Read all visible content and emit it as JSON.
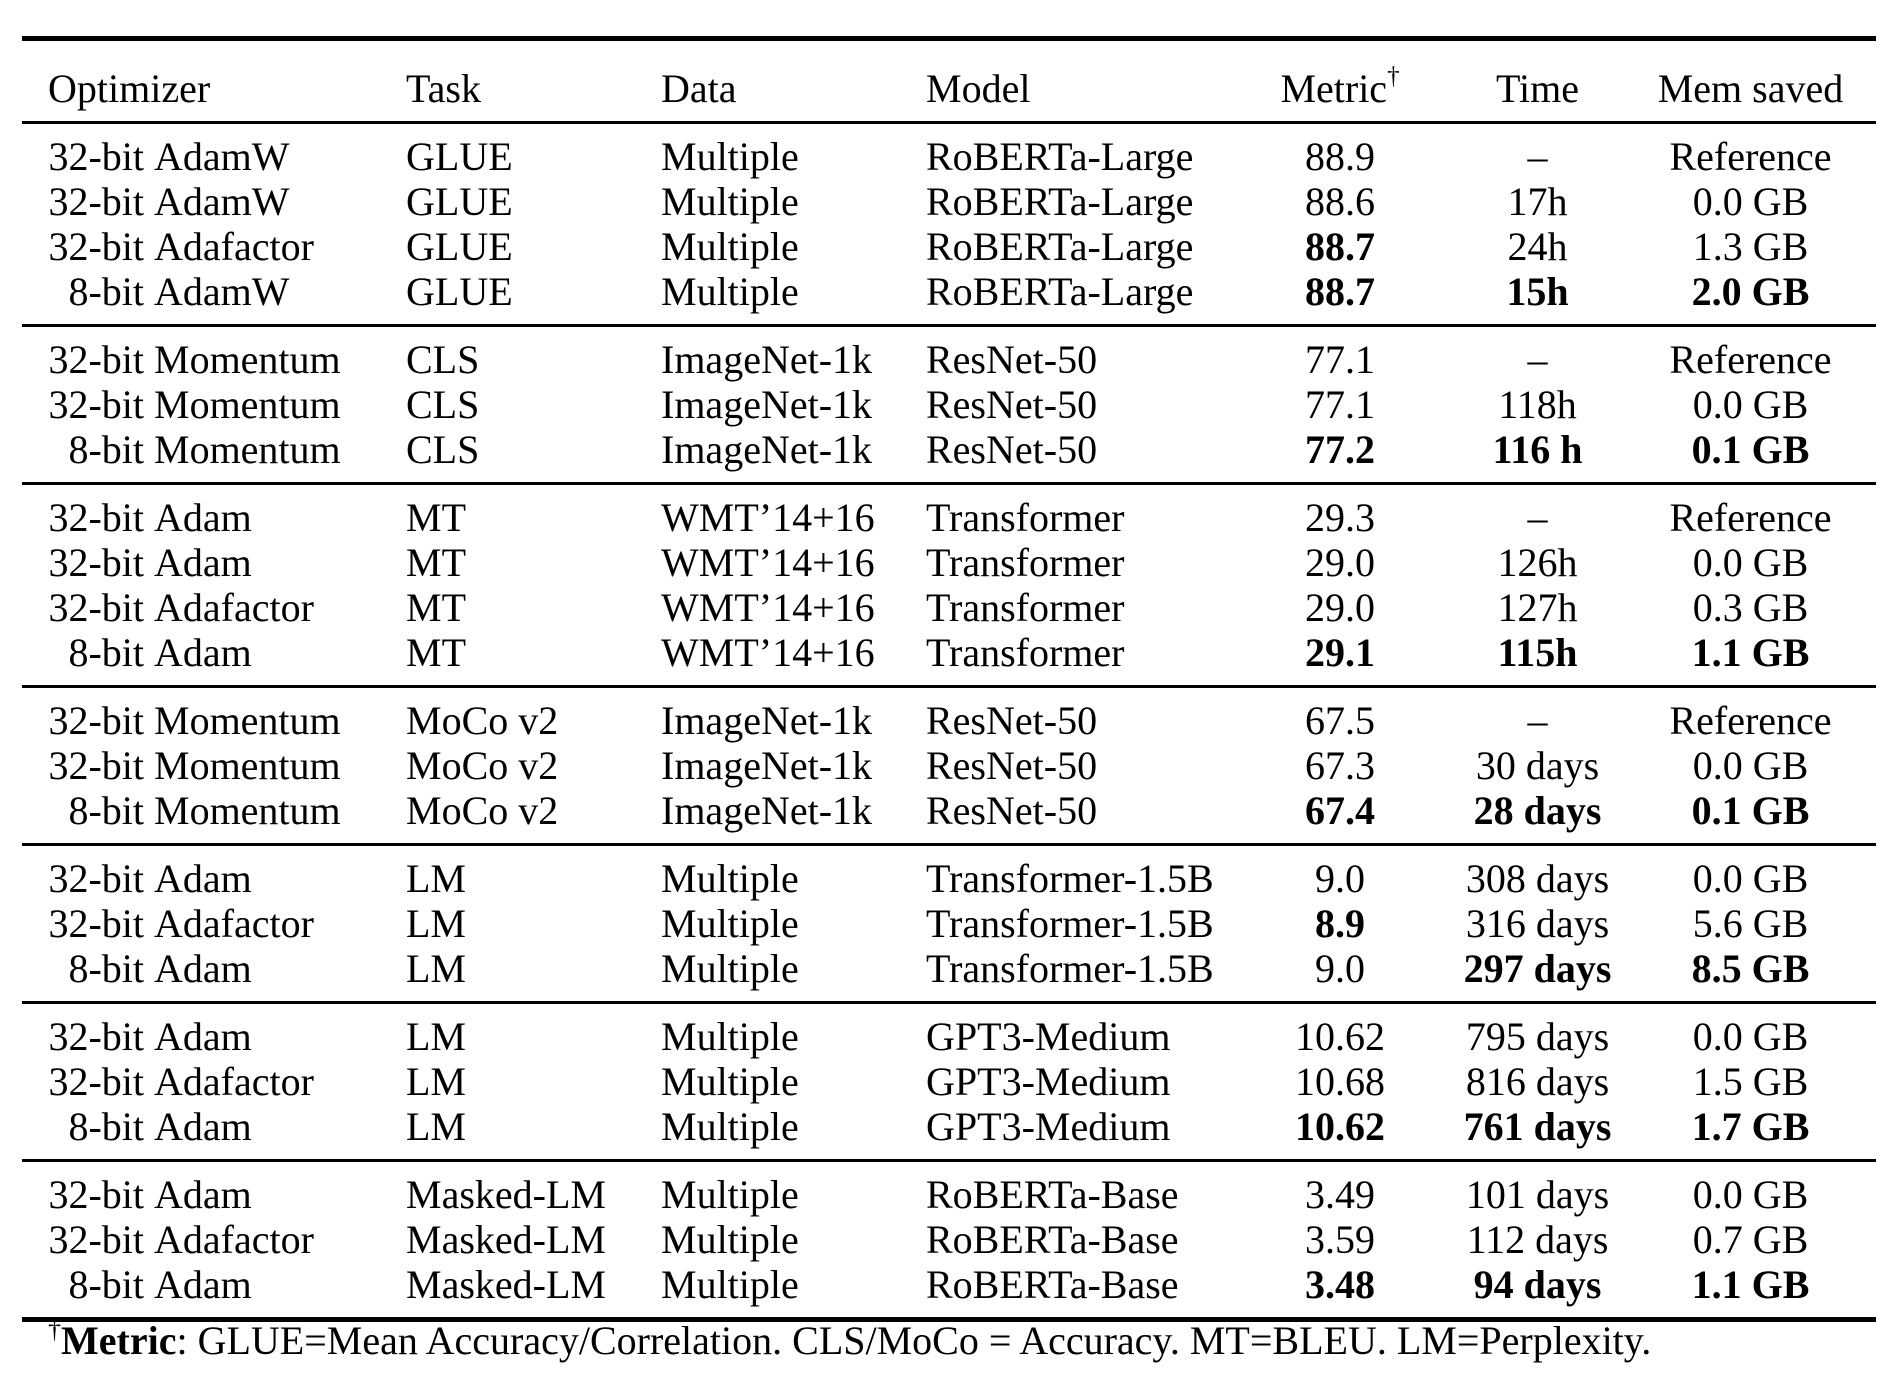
{
  "table": {
    "headers": [
      {
        "label": "Optimizer"
      },
      {
        "label": "Task"
      },
      {
        "label": "Data"
      },
      {
        "label": "Model"
      },
      {
        "label": "Metric",
        "sup": "†"
      },
      {
        "label": "Time"
      },
      {
        "label": "Mem saved"
      }
    ],
    "blocks": [
      {
        "rows": [
          {
            "optimizer": {
              "prefix": "32-bit",
              "name": "AdamW"
            },
            "task": "GLUE",
            "data": "Multiple",
            "model": "RoBERTa-Large",
            "metric": {
              "text": "88.9",
              "bold": false
            },
            "time": {
              "text": "–",
              "bold": false
            },
            "mem": {
              "text": "Reference",
              "bold": false
            }
          },
          {
            "optimizer": {
              "prefix": "32-bit",
              "name": "AdamW"
            },
            "task": "GLUE",
            "data": "Multiple",
            "model": "RoBERTa-Large",
            "metric": {
              "text": "88.6",
              "bold": false
            },
            "time": {
              "text": "17h",
              "bold": false
            },
            "mem": {
              "text": "0.0 GB",
              "bold": false
            }
          },
          {
            "optimizer": {
              "prefix": "32-bit",
              "name": "Adafactor"
            },
            "task": "GLUE",
            "data": "Multiple",
            "model": "RoBERTa-Large",
            "metric": {
              "text": "88.7",
              "bold": true
            },
            "time": {
              "text": "24h",
              "bold": false
            },
            "mem": {
              "text": "1.3 GB",
              "bold": false
            }
          },
          {
            "optimizer": {
              "prefix": "8-bit",
              "name": "AdamW"
            },
            "task": "GLUE",
            "data": "Multiple",
            "model": "RoBERTa-Large",
            "metric": {
              "text": "88.7",
              "bold": true
            },
            "time": {
              "text": "15h",
              "bold": true
            },
            "mem": {
              "text": "2.0 GB",
              "bold": true
            }
          }
        ]
      },
      {
        "rows": [
          {
            "optimizer": {
              "prefix": "32-bit",
              "name": "Momentum"
            },
            "task": "CLS",
            "data": "ImageNet-1k",
            "model": "ResNet-50",
            "metric": {
              "text": "77.1",
              "bold": false
            },
            "time": {
              "text": "–",
              "bold": false
            },
            "mem": {
              "text": "Reference",
              "bold": false
            }
          },
          {
            "optimizer": {
              "prefix": "32-bit",
              "name": "Momentum"
            },
            "task": "CLS",
            "data": "ImageNet-1k",
            "model": "ResNet-50",
            "metric": {
              "text": "77.1",
              "bold": false
            },
            "time": {
              "text": "118h",
              "bold": false
            },
            "mem": {
              "text": "0.0 GB",
              "bold": false
            }
          },
          {
            "optimizer": {
              "prefix": "8-bit",
              "name": "Momentum"
            },
            "task": "CLS",
            "data": "ImageNet-1k",
            "model": "ResNet-50",
            "metric": {
              "text": "77.2",
              "bold": true
            },
            "time": {
              "text": "116 h",
              "bold": true
            },
            "mem": {
              "text": "0.1 GB",
              "bold": true
            }
          }
        ]
      },
      {
        "rows": [
          {
            "optimizer": {
              "prefix": "32-bit",
              "name": "Adam"
            },
            "task": "MT",
            "data": "WMT’14+16",
            "model": "Transformer",
            "metric": {
              "text": "29.3",
              "bold": false
            },
            "time": {
              "text": "–",
              "bold": false
            },
            "mem": {
              "text": "Reference",
              "bold": false
            }
          },
          {
            "optimizer": {
              "prefix": "32-bit",
              "name": "Adam"
            },
            "task": "MT",
            "data": "WMT’14+16",
            "model": "Transformer",
            "metric": {
              "text": "29.0",
              "bold": false
            },
            "time": {
              "text": "126h",
              "bold": false
            },
            "mem": {
              "text": "0.0 GB",
              "bold": false
            }
          },
          {
            "optimizer": {
              "prefix": "32-bit",
              "name": "Adafactor"
            },
            "task": "MT",
            "data": "WMT’14+16",
            "model": "Transformer",
            "metric": {
              "text": "29.0",
              "bold": false
            },
            "time": {
              "text": "127h",
              "bold": false
            },
            "mem": {
              "text": "0.3 GB",
              "bold": false
            }
          },
          {
            "optimizer": {
              "prefix": "8-bit",
              "name": "Adam"
            },
            "task": "MT",
            "data": "WMT’14+16",
            "model": "Transformer",
            "metric": {
              "text": "29.1",
              "bold": true
            },
            "time": {
              "text": "115h",
              "bold": true
            },
            "mem": {
              "text": "1.1 GB",
              "bold": true
            }
          }
        ]
      },
      {
        "rows": [
          {
            "optimizer": {
              "prefix": "32-bit",
              "name": "Momentum"
            },
            "task": "MoCo v2",
            "data": "ImageNet-1k",
            "model": "ResNet-50",
            "metric": {
              "text": "67.5",
              "bold": false
            },
            "time": {
              "text": "–",
              "bold": false
            },
            "mem": {
              "text": "Reference",
              "bold": false
            }
          },
          {
            "optimizer": {
              "prefix": "32-bit",
              "name": "Momentum"
            },
            "task": "MoCo v2",
            "data": "ImageNet-1k",
            "model": "ResNet-50",
            "metric": {
              "text": "67.3",
              "bold": false
            },
            "time": {
              "text": "30 days",
              "bold": false
            },
            "mem": {
              "text": "0.0 GB",
              "bold": false
            }
          },
          {
            "optimizer": {
              "prefix": "8-bit",
              "name": "Momentum"
            },
            "task": "MoCo v2",
            "data": "ImageNet-1k",
            "model": "ResNet-50",
            "metric": {
              "text": "67.4",
              "bold": true
            },
            "time": {
              "text": "28 days",
              "bold": true
            },
            "mem": {
              "text": "0.1 GB",
              "bold": true
            }
          }
        ]
      },
      {
        "rows": [
          {
            "optimizer": {
              "prefix": "32-bit",
              "name": "Adam"
            },
            "task": "LM",
            "data": "Multiple",
            "model": "Transformer-1.5B",
            "metric": {
              "text": "9.0",
              "bold": false
            },
            "time": {
              "text": "308 days",
              "bold": false
            },
            "mem": {
              "text": "0.0 GB",
              "bold": false
            }
          },
          {
            "optimizer": {
              "prefix": "32-bit",
              "name": "Adafactor"
            },
            "task": "LM",
            "data": "Multiple",
            "model": "Transformer-1.5B",
            "metric": {
              "text": "8.9",
              "bold": true
            },
            "time": {
              "text": "316 days",
              "bold": false
            },
            "mem": {
              "text": "5.6 GB",
              "bold": false
            }
          },
          {
            "optimizer": {
              "prefix": "8-bit",
              "name": "Adam"
            },
            "task": "LM",
            "data": "Multiple",
            "model": "Transformer-1.5B",
            "metric": {
              "text": "9.0",
              "bold": false
            },
            "time": {
              "text": "297 days",
              "bold": true
            },
            "mem": {
              "text": "8.5 GB",
              "bold": true
            }
          }
        ]
      },
      {
        "rows": [
          {
            "optimizer": {
              "prefix": "32-bit",
              "name": "Adam"
            },
            "task": "LM",
            "data": "Multiple",
            "model": "GPT3-Medium",
            "metric": {
              "text": "10.62",
              "bold": false
            },
            "time": {
              "text": "795 days",
              "bold": false
            },
            "mem": {
              "text": "0.0 GB",
              "bold": false
            }
          },
          {
            "optimizer": {
              "prefix": "32-bit",
              "name": "Adafactor"
            },
            "task": "LM",
            "data": "Multiple",
            "model": "GPT3-Medium",
            "metric": {
              "text": "10.68",
              "bold": false
            },
            "time": {
              "text": "816 days",
              "bold": false
            },
            "mem": {
              "text": "1.5 GB",
              "bold": false
            }
          },
          {
            "optimizer": {
              "prefix": "8-bit",
              "name": "Adam"
            },
            "task": "LM",
            "data": "Multiple",
            "model": "GPT3-Medium",
            "metric": {
              "text": "10.62",
              "bold": true
            },
            "time": {
              "text": "761 days",
              "bold": true
            },
            "mem": {
              "text": "1.7 GB",
              "bold": true
            }
          }
        ]
      },
      {
        "rows": [
          {
            "optimizer": {
              "prefix": "32-bit",
              "name": "Adam"
            },
            "task": "Masked-LM",
            "data": "Multiple",
            "model": "RoBERTa-Base",
            "metric": {
              "text": "3.49",
              "bold": false
            },
            "time": {
              "text": "101 days",
              "bold": false
            },
            "mem": {
              "text": "0.0 GB",
              "bold": false
            }
          },
          {
            "optimizer": {
              "prefix": "32-bit",
              "name": "Adafactor"
            },
            "task": "Masked-LM",
            "data": "Multiple",
            "model": "RoBERTa-Base",
            "metric": {
              "text": "3.59",
              "bold": false
            },
            "time": {
              "text": "112 days",
              "bold": false
            },
            "mem": {
              "text": "0.7 GB",
              "bold": false
            }
          },
          {
            "optimizer": {
              "prefix": "8-bit",
              "name": "Adam"
            },
            "task": "Masked-LM",
            "data": "Multiple",
            "model": "RoBERTa-Base",
            "metric": {
              "text": "3.48",
              "bold": true
            },
            "time": {
              "text": "94 days",
              "bold": true
            },
            "mem": {
              "text": "1.1 GB",
              "bold": true
            }
          }
        ]
      }
    ],
    "footnote": {
      "sup": "†",
      "lead": "Metric",
      "rest": ": GLUE=Mean Accuracy/Correlation. CLS/MoCo = Accuracy. MT=BLEU. LM=Perplexity."
    }
  }
}
